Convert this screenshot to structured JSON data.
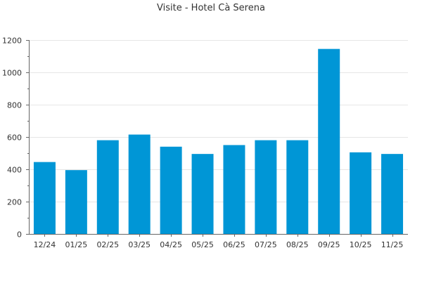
{
  "chart_data": {
    "type": "bar",
    "title": "Visite - Hotel Cà Serena",
    "categories": [
      "12/24",
      "01/25",
      "02/25",
      "03/25",
      "04/25",
      "05/25",
      "06/25",
      "07/25",
      "08/25",
      "09/25",
      "10/25",
      "11/25"
    ],
    "values": [
      445,
      395,
      580,
      615,
      540,
      495,
      550,
      580,
      580,
      1145,
      505,
      495
    ],
    "ylim": [
      0,
      1200
    ],
    "yticks": [
      0,
      200,
      400,
      600,
      800,
      1000,
      1200
    ],
    "grid": true,
    "bar_color": "#0096d6",
    "grid_color": "#e6e6e6",
    "axis_color": "#666666"
  }
}
